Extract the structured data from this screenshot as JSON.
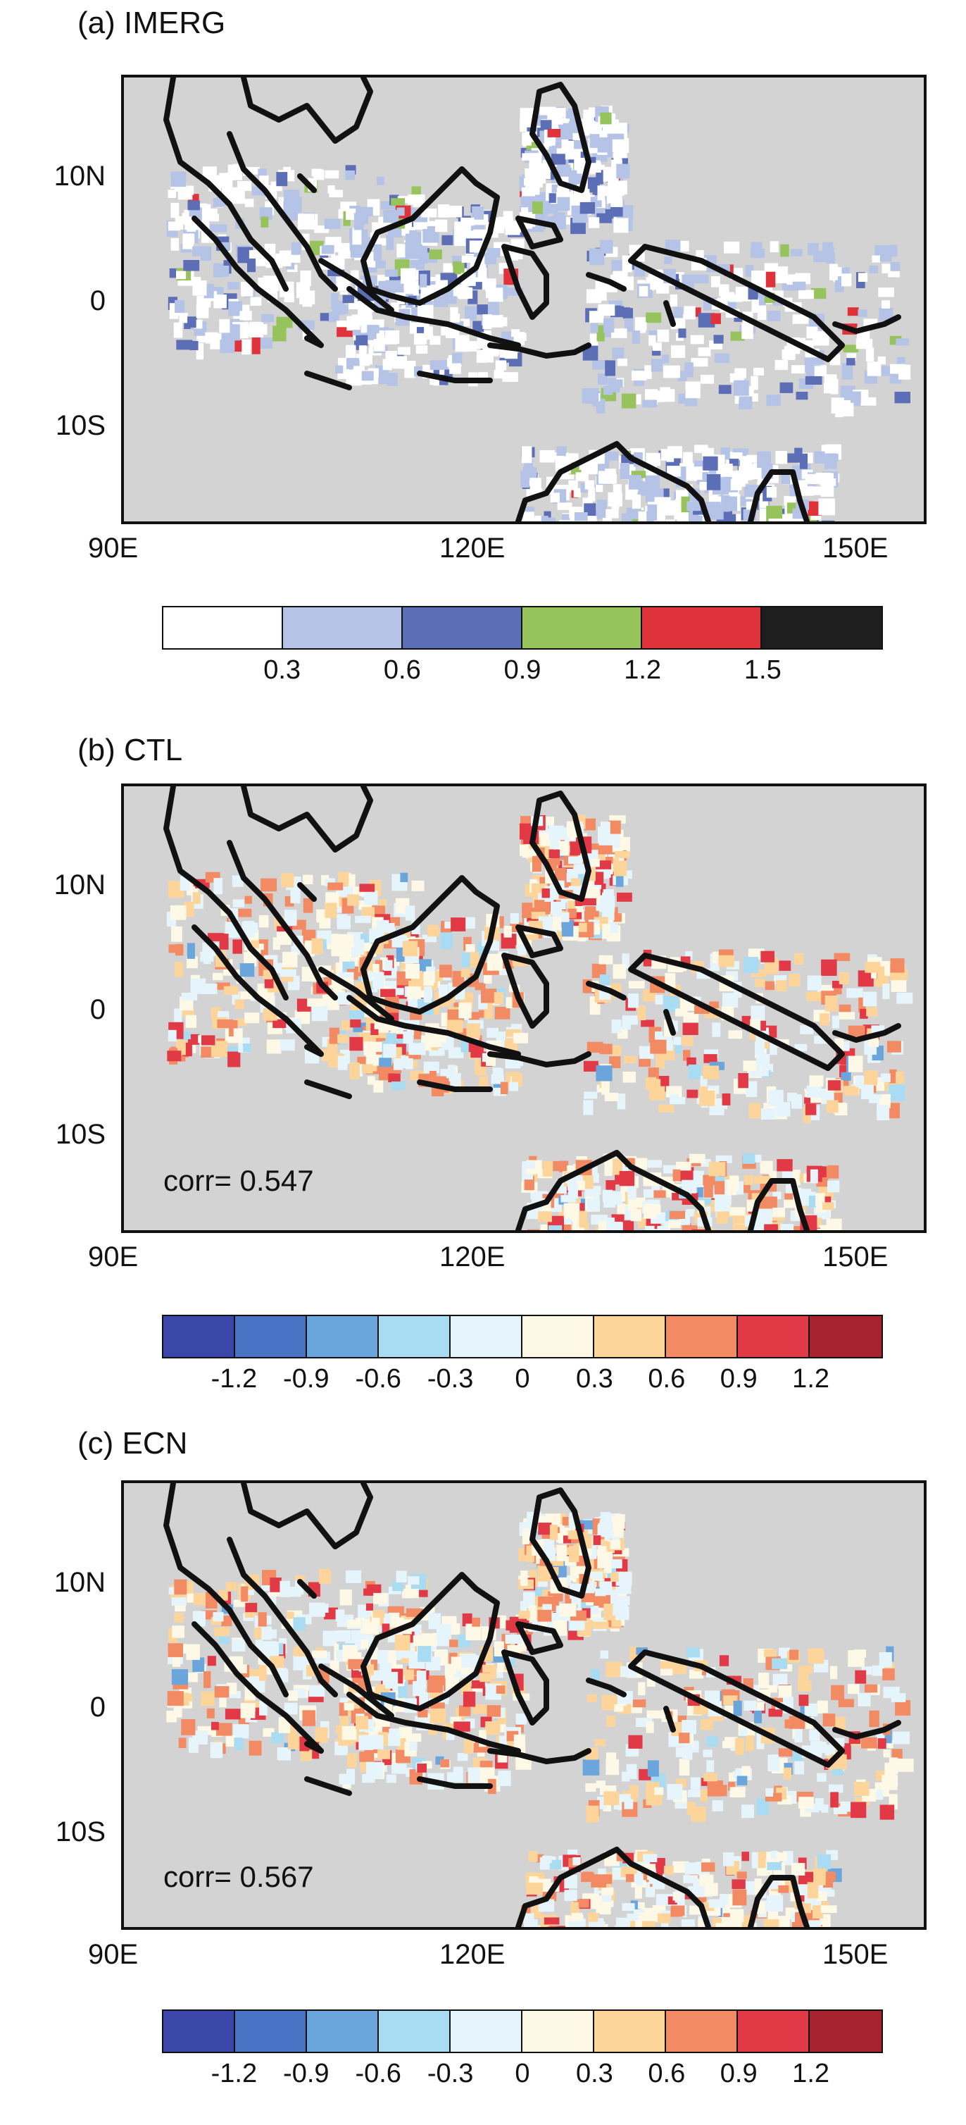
{
  "axes": {
    "lat_labels": [
      "10N",
      "0",
      "10S"
    ],
    "lon_labels": [
      "90E",
      "120E",
      "150E"
    ]
  },
  "panels": [
    {
      "title": "(a) IMERG",
      "corr": "",
      "colorbar": {
        "colors": [
          "#ffffff",
          "#b4c3e6",
          "#5c6fb6",
          "#97c35c",
          "#e0323a",
          "#1e1e1e"
        ],
        "labels": [
          "0.3",
          "0.6",
          "0.9",
          "1.2",
          "1.5"
        ]
      }
    },
    {
      "title": "(b) CTL",
      "corr": "corr= 0.547",
      "colorbar": {
        "colors": [
          "#3a46a8",
          "#4a72c4",
          "#6aa6dc",
          "#a9dcf3",
          "#e6f4fb",
          "#fdf9e6",
          "#fdd59a",
          "#f28b64",
          "#e13a46",
          "#a6222c"
        ],
        "labels": [
          "-1.2",
          "-0.9",
          "-0.6",
          "-0.3",
          "0",
          "0.3",
          "0.6",
          "0.9",
          "1.2"
        ]
      }
    },
    {
      "title": "(c) ECN",
      "corr": "corr= 0.567",
      "colorbar": {
        "colors": [
          "#3a46a8",
          "#4a72c4",
          "#6aa6dc",
          "#a9dcf3",
          "#e6f4fb",
          "#fdf9e6",
          "#fdd59a",
          "#f28b64",
          "#e13a46",
          "#a6222c"
        ],
        "labels": [
          "-1.2",
          "-0.9",
          "-0.6",
          "-0.3",
          "0",
          "0.3",
          "0.6",
          "0.9",
          "1.2"
        ]
      }
    }
  ]
}
